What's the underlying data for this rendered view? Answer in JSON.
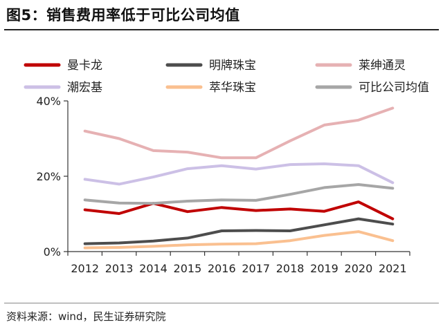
{
  "figure": {
    "title": "图5：销售费用率低于可比公司均值",
    "source": "资料来源：wind，民生证券研究院"
  },
  "chart_data": {
    "type": "line",
    "title": "图5：销售费用率低于可比公司均值",
    "xlabel": "",
    "ylabel": "",
    "x": [
      "2012",
      "2013",
      "2014",
      "2015",
      "2016",
      "2017",
      "2018",
      "2019",
      "2020",
      "2021"
    ],
    "ylim": [
      0,
      40
    ],
    "yticks": [
      0,
      20,
      40
    ],
    "ytick_labels": [
      "0%",
      "20%",
      "40%"
    ],
    "grid": false,
    "legend": "top",
    "series": [
      {
        "name": "曼卡龙",
        "color": "#c00000",
        "values": [
          11.1,
          10.1,
          12.8,
          10.6,
          11.7,
          10.9,
          11.3,
          10.7,
          13.2,
          8.7
        ]
      },
      {
        "name": "明牌珠宝",
        "color": "#4d4d4d",
        "values": [
          2.1,
          2.3,
          2.8,
          3.6,
          5.5,
          5.6,
          5.5,
          7.1,
          8.7,
          7.3
        ]
      },
      {
        "name": "莱绅通灵",
        "color": "#e6b1b3",
        "values": [
          32.0,
          30.0,
          26.8,
          26.4,
          24.9,
          24.9,
          29.4,
          33.6,
          34.9,
          38.1
        ]
      },
      {
        "name": "潮宏基",
        "color": "#ccc0e6",
        "values": [
          19.2,
          17.9,
          19.8,
          22.0,
          22.8,
          21.9,
          23.1,
          23.3,
          22.8,
          18.3
        ]
      },
      {
        "name": "萃华珠宝",
        "color": "#fac090",
        "values": [
          1.0,
          1.1,
          1.4,
          1.8,
          2.0,
          2.1,
          2.9,
          4.3,
          5.3,
          2.9
        ]
      },
      {
        "name": "可比公司均值",
        "color": "#a6a6a6",
        "values": [
          13.7,
          12.9,
          12.8,
          13.4,
          13.7,
          13.6,
          15.2,
          17.0,
          17.8,
          16.8
        ]
      }
    ]
  }
}
